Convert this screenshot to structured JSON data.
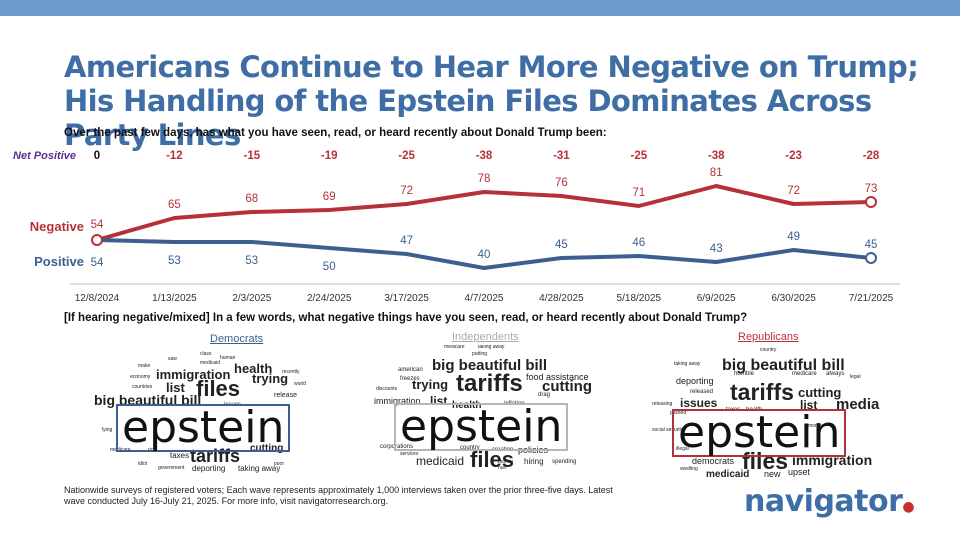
{
  "title": "Americans Continue to Hear More Negative on Trump; His Handling of the Epstein Files Dominates Across Party Lines",
  "question": "Over the past few days, has what you have seen, read, or heard recently about Donald Trump been:",
  "colors": {
    "negative": "#b5313a",
    "positive": "#3b5f8f",
    "net": "#5b2e91",
    "title": "#3e6ea5"
  },
  "chart_data": {
    "type": "line",
    "x": [
      "12/8/2024",
      "1/13/2025",
      "2/3/2025",
      "2/24/2025",
      "3/17/2025",
      "4/7/2025",
      "4/28/2025",
      "5/18/2025",
      "6/9/2025",
      "6/30/2025",
      "7/21/2025"
    ],
    "series": [
      {
        "name": "Negative",
        "values": [
          54,
          65,
          68,
          69,
          72,
          78,
          76,
          71,
          81,
          72,
          73
        ]
      },
      {
        "name": "Positive",
        "values": [
          54,
          53,
          53,
          50,
          47,
          40,
          45,
          46,
          43,
          49,
          45
        ]
      }
    ],
    "net_label": "Net Positive",
    "net_values": [
      "0",
      "-12",
      "-15",
      "-19",
      "-25",
      "-38",
      "-31",
      "-25",
      "-38",
      "-23",
      "-28"
    ],
    "ylim": [
      35,
      85
    ],
    "xlabel": "",
    "ylabel": ""
  },
  "subquestion": "[If hearing negative/mixed] In a few words, what negative things have you seen, read, or heard recently about Donald Trump?",
  "clouds": {
    "democrats": {
      "label": "Democrats",
      "big": "epstein",
      "words": [
        "class",
        "saw",
        "medicaid",
        "human",
        "make",
        "economy",
        "countries",
        "health",
        "immigration",
        "trying",
        "list",
        "files",
        "recently",
        "world",
        "big beautiful bill",
        "release",
        "issues",
        "lying",
        "medicare",
        "rich",
        "taxes",
        "cutting",
        "tariffs",
        "idiot",
        "government",
        "deporting",
        "taking away",
        "poor"
      ]
    },
    "independents": {
      "label": "Independents",
      "big": "epstein",
      "words": [
        "medicare",
        "taking away",
        "putting",
        "big beautiful bill",
        "american",
        "freezes",
        "food assistance",
        "trying",
        "tariffs",
        "cutting",
        "drag",
        "discounts",
        "immigration",
        "list",
        "health",
        "inflation",
        "corporations",
        "services",
        "country",
        "creation",
        "policies",
        "medicaid",
        "files",
        "hiring",
        "spending",
        "money",
        "hurt"
      ]
    },
    "republicans": {
      "label": "Republicans",
      "big": "epstein",
      "words": [
        "country",
        "taking away",
        "big beautiful bill",
        "deporting",
        "horrible",
        "medicare",
        "always",
        "legal",
        "released",
        "tariffs",
        "cutting",
        "issues",
        "list",
        "media",
        "taxes",
        "health",
        "releasing",
        "passed",
        "social security",
        "illegal",
        "democrats",
        "files",
        "immigration",
        "medicaid",
        "new",
        "upset",
        "swelling",
        "money"
      ]
    }
  },
  "footnote": "Nationwide surveys of registered voters; Each wave represents approximately 1,000 interviews taken over the prior three-five days. Latest wave conducted July 16-July 21, 2025. For more info, visit navigatorresearch.org.",
  "logo": "navigator"
}
